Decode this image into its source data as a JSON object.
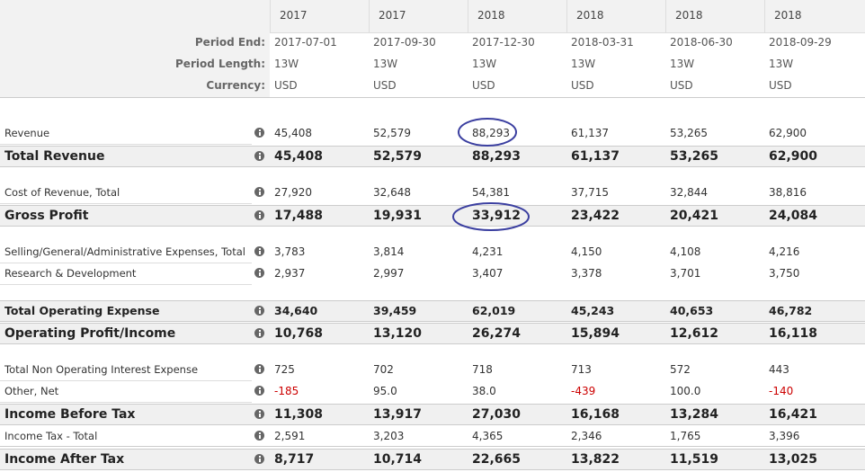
{
  "header": {
    "years": [
      "2017",
      "2017",
      "2018",
      "2018",
      "2018",
      "2018"
    ]
  },
  "meta": [
    {
      "label": "Period End:",
      "values": [
        "2017-07-01",
        "2017-09-30",
        "2017-12-30",
        "2018-03-31",
        "2018-06-30",
        "2018-09-29"
      ]
    },
    {
      "label": "Period Length:",
      "values": [
        "13W",
        "13W",
        "13W",
        "13W",
        "13W",
        "13W"
      ]
    },
    {
      "label": "Currency:",
      "values": [
        "USD",
        "USD",
        "USD",
        "USD",
        "USD",
        "USD"
      ]
    }
  ],
  "rows": [
    {
      "label": "Revenue",
      "values": [
        "45,408",
        "52,579",
        "88,293",
        "61,137",
        "53,265",
        "62,900"
      ]
    },
    {
      "label": "Total Revenue",
      "values": [
        "45,408",
        "52,579",
        "88,293",
        "61,137",
        "53,265",
        "62,900"
      ]
    },
    {
      "label": "Cost of Revenue, Total",
      "values": [
        "27,920",
        "32,648",
        "54,381",
        "37,715",
        "32,844",
        "38,816"
      ]
    },
    {
      "label": "Gross Profit",
      "values": [
        "17,488",
        "19,931",
        "33,912",
        "23,422",
        "20,421",
        "24,084"
      ]
    },
    {
      "label": "Selling/General/Administrative Expenses, Total",
      "values": [
        "3,783",
        "3,814",
        "4,231",
        "4,150",
        "4,108",
        "4,216"
      ]
    },
    {
      "label": "Research & Development",
      "values": [
        "2,937",
        "2,997",
        "3,407",
        "3,378",
        "3,701",
        "3,750"
      ]
    },
    {
      "label": "Total Operating Expense",
      "values": [
        "34,640",
        "39,459",
        "62,019",
        "45,243",
        "40,653",
        "46,782"
      ]
    },
    {
      "label": "Operating Profit/Income",
      "values": [
        "10,768",
        "13,120",
        "26,274",
        "15,894",
        "12,612",
        "16,118"
      ]
    },
    {
      "label": "Total Non Operating Interest Expense",
      "values": [
        "725",
        "702",
        "718",
        "713",
        "572",
        "443"
      ]
    },
    {
      "label": "Other, Net",
      "values": [
        "-185",
        "95.0",
        "38.0",
        "-439",
        "100.0",
        "-140"
      ]
    },
    {
      "label": "Income Before Tax",
      "values": [
        "11,308",
        "13,917",
        "27,030",
        "16,168",
        "13,284",
        "16,421"
      ]
    },
    {
      "label": "Income Tax - Total",
      "values": [
        "2,591",
        "3,203",
        "4,365",
        "2,346",
        "1,765",
        "3,396"
      ]
    },
    {
      "label": "Income After Tax",
      "values": [
        "8,717",
        "10,714",
        "22,665",
        "13,822",
        "11,519",
        "13,025"
      ]
    }
  ]
}
